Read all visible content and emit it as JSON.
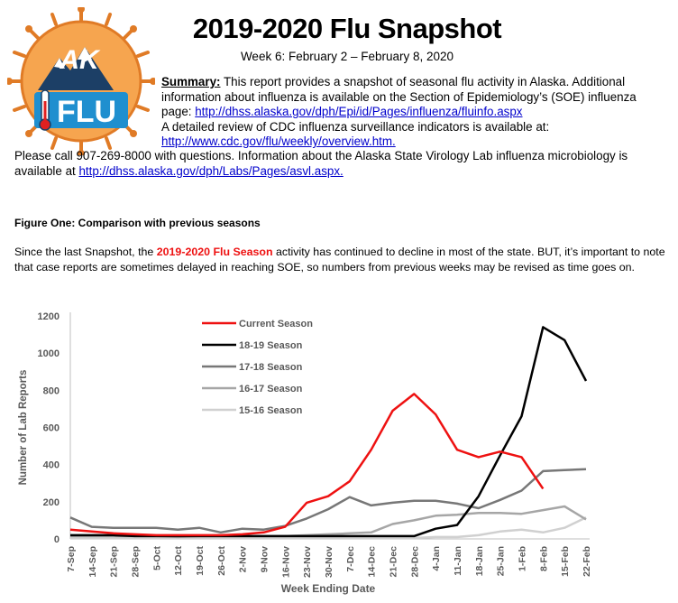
{
  "header": {
    "title": "2019-2020 Flu Snapshot",
    "week": "Week 6: February 2 – February 8, 2020",
    "logo_text_top": "AK",
    "logo_text_bottom": "FLU"
  },
  "summary": {
    "label": "Summary:",
    "text1": " This report provides a snapshot of seasonal flu activity in Alaska. Additional information about influenza is available on the Section of Epidemiology’s (SOE) influenza page: ",
    "link1": "http://dhss.alaska.gov/dph/Epi/id/Pages/influenza/fluinfo.aspx",
    "text2": "A detailed review of CDC influenza surveillance indicators is available at:",
    "link2": "http://www.cdc.gov/flu/weekly/overview.htm."
  },
  "contact": {
    "text": "Please call 907-269-8000 with questions. Information about the Alaska State Virology Lab influenza microbiology is available at ",
    "link": "http://dhss.alaska.gov/dph/Labs/Pages/asvl.aspx."
  },
  "figure": {
    "title": "Figure One: Comparison with previous seasons",
    "text_before": "Since the last Snapshot, the ",
    "season": "2019-2020 Flu Season",
    "text_after": " activity has continued to decline in most of the state.  BUT, it’s important to note that case reports are sometimes delayed in reaching SOE, so numbers from previous weeks may be revised as time goes on."
  },
  "chart_data": {
    "type": "line",
    "xlabel": "Week Ending Date",
    "ylabel": "Number of Lab Reports",
    "ylim": [
      0,
      1200
    ],
    "yticks": [
      0,
      200,
      400,
      600,
      800,
      1000,
      1200
    ],
    "grid": false,
    "legend_position": "top-left",
    "categories": [
      "7-Sep",
      "14-Sep",
      "21-Sep",
      "28-Sep",
      "5-Oct",
      "12-Oct",
      "19-Oct",
      "26-Oct",
      "2-Nov",
      "9-Nov",
      "16-Nov",
      "23-Nov",
      "30-Nov",
      "7-Dec",
      "14-Dec",
      "21-Dec",
      "28-Dec",
      "4-Jan",
      "11-Jan",
      "18-Jan",
      "25-Jan",
      "1-Feb",
      "8-Feb",
      "15-Feb",
      "22-Feb"
    ],
    "series": [
      {
        "name": "Current Season",
        "color": "#ee1111",
        "width": 2.5,
        "values": [
          50,
          40,
          30,
          25,
          20,
          20,
          20,
          20,
          25,
          35,
          65,
          195,
          230,
          310,
          480,
          690,
          780,
          670,
          480,
          440,
          470,
          440,
          270,
          null,
          null
        ]
      },
      {
        "name": "18-19 Season",
        "color": "#000000",
        "width": 2.5,
        "values": [
          20,
          20,
          20,
          15,
          15,
          15,
          15,
          15,
          15,
          15,
          15,
          15,
          15,
          15,
          15,
          15,
          15,
          55,
          75,
          230,
          450,
          660,
          1140,
          1070,
          850
        ]
      },
      {
        "name": "17-18 Season",
        "color": "#777777",
        "width": 2.5,
        "values": [
          115,
          65,
          60,
          60,
          60,
          50,
          60,
          35,
          55,
          50,
          70,
          110,
          160,
          225,
          180,
          195,
          205,
          205,
          190,
          165,
          210,
          260,
          365,
          370,
          375
        ]
      },
      {
        "name": "16-17 Season",
        "color": "#a6a6a6",
        "width": 2.5,
        "values": [
          15,
          15,
          15,
          15,
          15,
          10,
          15,
          15,
          15,
          15,
          15,
          20,
          25,
          30,
          35,
          80,
          100,
          125,
          130,
          140,
          140,
          135,
          155,
          175,
          105
        ]
      },
      {
        "name": "15-16 Season",
        "color": "#d0d0d0",
        "width": 2.5,
        "values": [
          5,
          5,
          5,
          5,
          5,
          5,
          5,
          5,
          5,
          5,
          5,
          5,
          5,
          5,
          5,
          5,
          5,
          10,
          10,
          20,
          40,
          50,
          35,
          60,
          115
        ]
      }
    ]
  }
}
